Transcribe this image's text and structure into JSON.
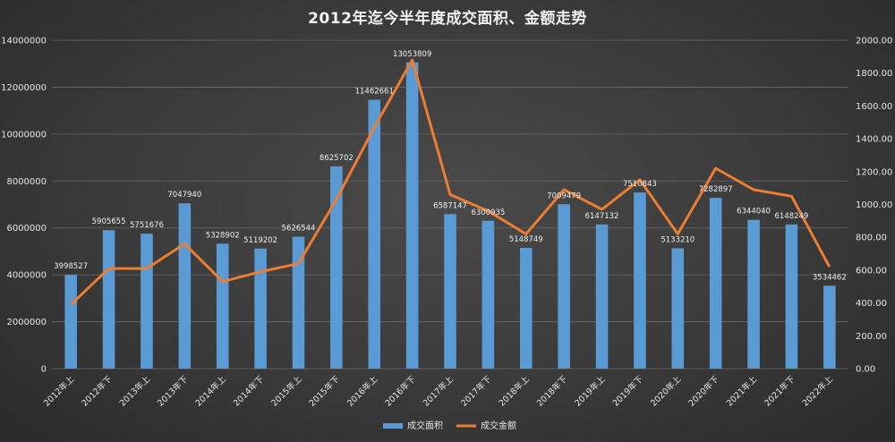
{
  "chart_data": {
    "type": "bar",
    "title": "2012年迄今半年度成交面积、金额走势",
    "categories": [
      "2012年上",
      "2012年下",
      "2013年上",
      "2013年下",
      "2014年上",
      "2014年下",
      "2015年上",
      "2015年下",
      "2016年上",
      "2016年下",
      "2017年上",
      "2017年下",
      "2018年上",
      "2018年下",
      "2019年上",
      "2019年下",
      "2020年上",
      "2020年下",
      "2021年上",
      "2021年下",
      "2022年上"
    ],
    "series": [
      {
        "name": "成交面积",
        "type": "bar",
        "axis": "left",
        "color": "#5b9bd5",
        "values": [
          3998527,
          5905655,
          5751676,
          7047940,
          5328902,
          5119202,
          5626544,
          8625702,
          11462661,
          13053809,
          6587147,
          6300935,
          5148749,
          7009479,
          6147132,
          7510843,
          5133210,
          7282897,
          6344040,
          6148249,
          3534462
        ],
        "labels": [
          "3998527",
          "5905655",
          "5751676",
          "7047940",
          "5328902",
          "5119202",
          "5626544",
          "8625702",
          "11462661",
          "13053809",
          "6587147",
          "6300935",
          "5148749",
          "7009479",
          "6147132",
          "7510843",
          "5133210",
          "7282897",
          "6344040",
          "6148249",
          "3534462"
        ]
      },
      {
        "name": "成交金额",
        "type": "line",
        "axis": "right",
        "color": "#ed7d31",
        "values": [
          390,
          610,
          610,
          760,
          530,
          590,
          640,
          1030,
          1470,
          1880,
          1060,
          960,
          820,
          1090,
          970,
          1150,
          820,
          1220,
          1090,
          1050,
          620
        ]
      }
    ],
    "y_left": {
      "lim": [
        0,
        14000000
      ],
      "ticks": [
        "0",
        "2000000",
        "4000000",
        "6000000",
        "8000000",
        "10000000",
        "12000000",
        "14000000"
      ]
    },
    "y_right": {
      "lim": [
        0,
        2000
      ],
      "ticks": [
        "0.00",
        "200.00",
        "400.00",
        "600.00",
        "800.00",
        "1000.00",
        "1200.00",
        "1400.00",
        "1600.00",
        "1800.00",
        "2000.00"
      ]
    },
    "grid": true,
    "legend_position": "bottom"
  }
}
